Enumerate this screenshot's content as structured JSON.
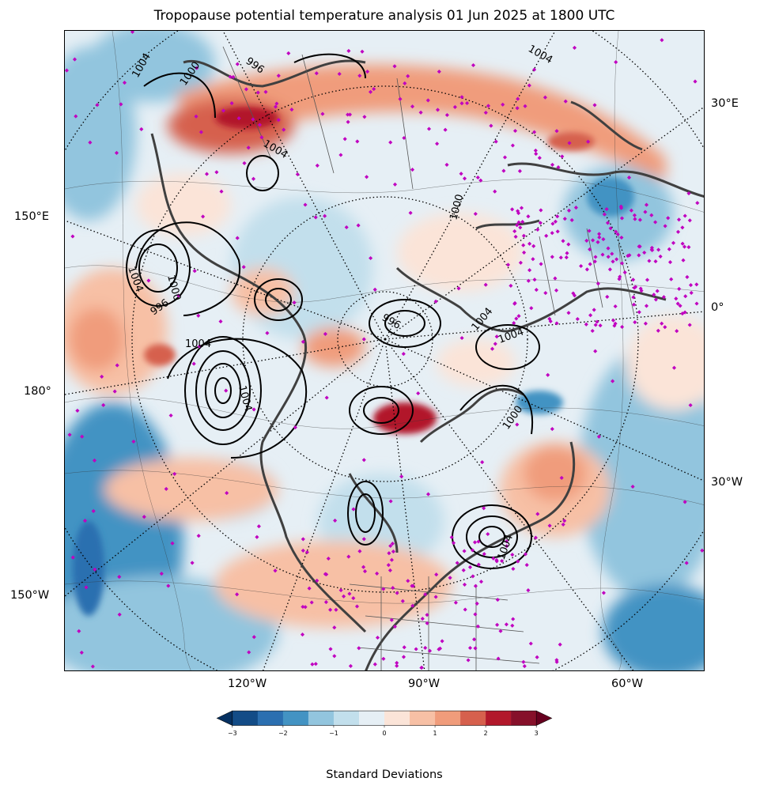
{
  "title": "Tropopause potential temperature analysis 01 Jun 2025 at 1800 UTC",
  "map": {
    "projection": "north-polar-stereographic",
    "field": "tropopause potential temperature anomaly",
    "contour_label_values": [
      "1004",
      "1000",
      "996",
      "1004",
      "1004",
      "1000",
      "996",
      "1004",
      "1004",
      "1000",
      "1004",
      "1004",
      "996",
      "1000",
      "1004",
      "1004"
    ],
    "station_marker_color": "#c000c0",
    "coastline_color": "#404040",
    "pressure_contour_color": "#000000"
  },
  "edge_labels": {
    "left": [
      "150°E",
      "180°",
      "150°W"
    ],
    "right": [
      "30°E",
      "0°",
      "30°W"
    ],
    "bottom": [
      "120°W",
      "90°W",
      "60°W"
    ]
  },
  "colorbar": {
    "label": "Standard Deviations",
    "ticks": [
      "−3",
      "−2",
      "−1",
      "0",
      "1",
      "2",
      "3"
    ],
    "colors": [
      "#053061",
      "#134c87",
      "#2b6fb0",
      "#4393c3",
      "#92c5de",
      "#c2dfec",
      "#e6eff5",
      "#fbe4d8",
      "#f7c0a5",
      "#f09c7b",
      "#d6604d",
      "#b2182b",
      "#86102a",
      "#67001f"
    ]
  }
}
